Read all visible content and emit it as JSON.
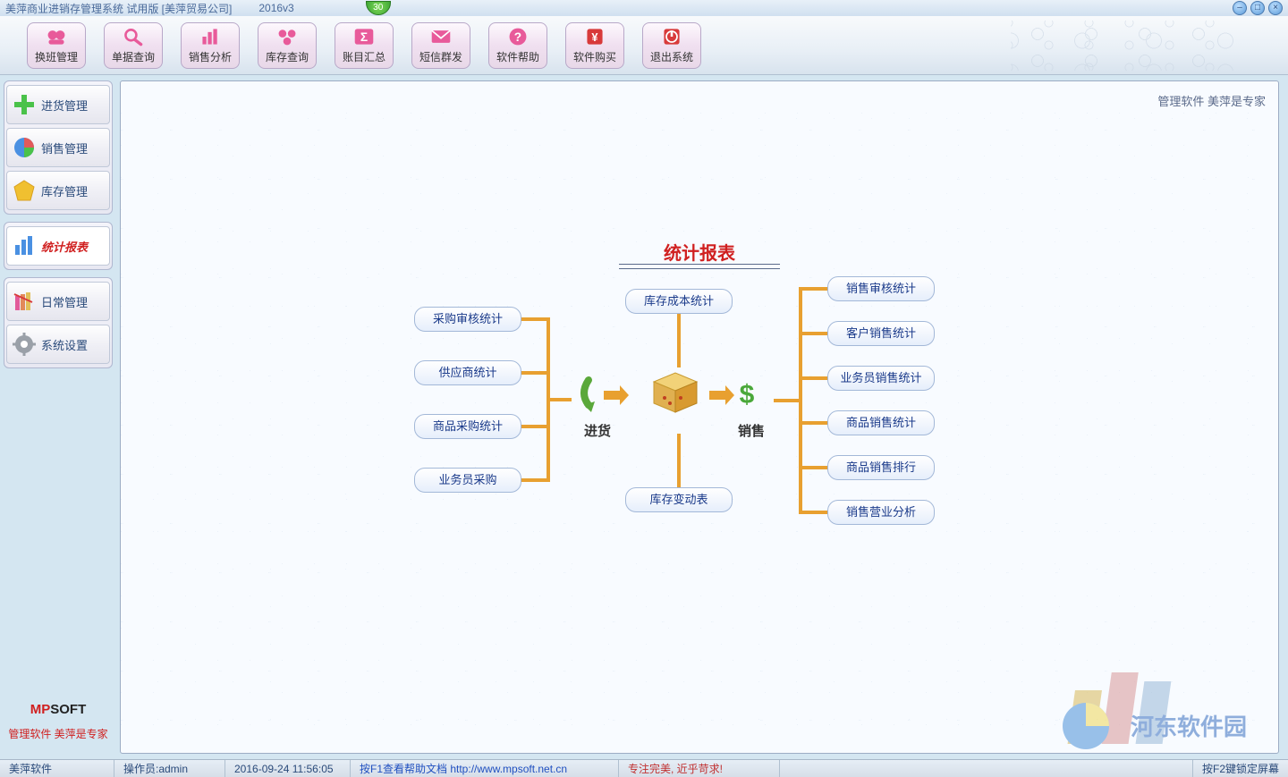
{
  "window": {
    "title": "美萍商业进销存管理系统 试用版 [美萍贸易公司]",
    "version": "2016v3",
    "badge": "30"
  },
  "toolbar": [
    {
      "id": "shift",
      "label": "换班管理"
    },
    {
      "id": "query",
      "label": "单据查询"
    },
    {
      "id": "sales",
      "label": "销售分析"
    },
    {
      "id": "stock",
      "label": "库存查询"
    },
    {
      "id": "account",
      "label": "账目汇总"
    },
    {
      "id": "sms",
      "label": "短信群发"
    },
    {
      "id": "help",
      "label": "软件帮助"
    },
    {
      "id": "buy",
      "label": "软件购买"
    },
    {
      "id": "exit",
      "label": "退出系统"
    }
  ],
  "sidebar": {
    "groups": [
      {
        "items": [
          {
            "id": "purchase",
            "label": "进货管理",
            "active": false
          },
          {
            "id": "sale",
            "label": "销售管理",
            "active": false
          },
          {
            "id": "inventory",
            "label": "库存管理",
            "active": false
          }
        ]
      },
      {
        "items": [
          {
            "id": "report",
            "label": "统计报表",
            "active": true
          }
        ]
      },
      {
        "items": [
          {
            "id": "daily",
            "label": "日常管理",
            "active": false
          },
          {
            "id": "settings",
            "label": "系统设置",
            "active": false
          }
        ]
      }
    ],
    "brand_mp": "MP",
    "brand_soft": "SOFT",
    "brand_tag": "管理软件 美萍是专家"
  },
  "canvas": {
    "tag": "管理软件 美萍是专家",
    "diagram": {
      "title": "统计报表",
      "left_nodes": [
        "采购审核统计",
        "供应商统计",
        "商品采购统计",
        "业务员采购"
      ],
      "center_top": "库存成本统计",
      "center_bottom": "库存变动表",
      "right_nodes": [
        "销售审核统计",
        "客户销售统计",
        "业务员销售统计",
        "商品销售统计",
        "商品销售排行",
        "销售营业分析"
      ],
      "flow_in": "进货",
      "flow_out": "销售",
      "colors": {
        "connector": "#e8a030",
        "title": "#d02020",
        "node_text": "#1a3a8a"
      }
    }
  },
  "statusbar": {
    "company": "美萍软件",
    "operator": "操作员:admin",
    "datetime": "2016-09-24 11:56:05",
    "help": "按F1查看帮助文档  http://www.mpsoft.net.cn",
    "slogan": "专注完美, 近乎苛求!",
    "lock": "按F2键锁定屏幕"
  },
  "watermark": "河东软件园"
}
